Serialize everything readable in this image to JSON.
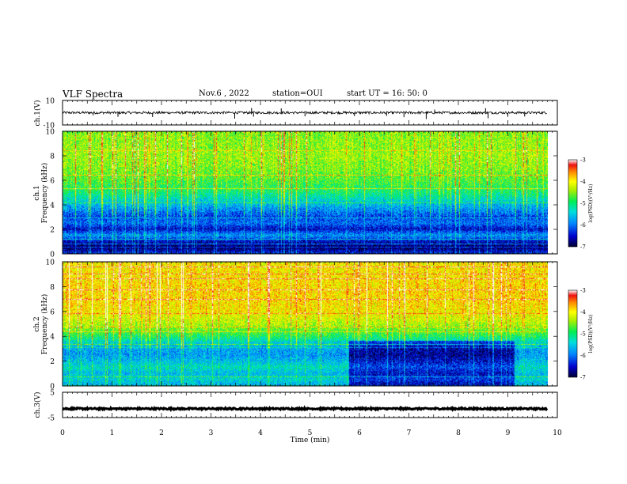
{
  "header": {
    "title": "VLF Spectra",
    "date": "Nov.6 , 2022",
    "station": "station=OUI",
    "start": "start UT = 16: 50: 0"
  },
  "chart_data": [
    {
      "type": "line",
      "panel": "ch1-waveform",
      "ylabel": "ch.1(V)",
      "ylim": [
        -10,
        10
      ],
      "yticks": [
        "10",
        "-10"
      ],
      "xlim": [
        0,
        10
      ],
      "baseline": 0,
      "noise_amplitude": 1.0,
      "spikes": [
        {
          "x": 0.62,
          "y": -2.2
        },
        {
          "x": 1.12,
          "y": -3.4
        },
        {
          "x": 1.82,
          "y": -3.5
        },
        {
          "x": 3.48,
          "y": -4.8
        },
        {
          "x": 3.82,
          "y": 3.8
        },
        {
          "x": 3.86,
          "y": -3.2
        },
        {
          "x": 4.42,
          "y": 3.5
        },
        {
          "x": 4.9,
          "y": -3.0
        },
        {
          "x": 5.9,
          "y": -2.8
        },
        {
          "x": 6.55,
          "y": -2.6
        },
        {
          "x": 6.9,
          "y": -3.6
        },
        {
          "x": 7.35,
          "y": -5.2
        },
        {
          "x": 7.52,
          "y": 2.6
        },
        {
          "x": 8.55,
          "y": 3.6
        },
        {
          "x": 8.6,
          "y": -4.5
        },
        {
          "x": 9.0,
          "y": -3.3
        },
        {
          "x": 9.34,
          "y": -3.1
        }
      ]
    },
    {
      "type": "heatmap",
      "panel": "ch1-spectrogram",
      "ylabel_top": "ch.1",
      "ylabel": "Frequency (kHz)",
      "xlim": [
        0,
        10
      ],
      "xdata_end": 9.8,
      "ylim": [
        0,
        10
      ],
      "yticks": [
        "0",
        "2",
        "4",
        "6",
        "8",
        "10"
      ],
      "colorbar": {
        "label": "log(PSD)(V²/Hz)",
        "range": [
          -7,
          -3
        ],
        "ticks": [
          "-3",
          "-4",
          "-5",
          "-6",
          "-7"
        ]
      },
      "profile": [
        {
          "f": 0,
          "log_psd": -6.3
        },
        {
          "f": 0.5,
          "log_psd": -6.9
        },
        {
          "f": 1.0,
          "log_psd": -6.5
        },
        {
          "f": 1.5,
          "log_psd": -5.8
        },
        {
          "f": 2.0,
          "log_psd": -6.5
        },
        {
          "f": 2.5,
          "log_psd": -6.0
        },
        {
          "f": 3.0,
          "log_psd": -6.2
        },
        {
          "f": 3.5,
          "log_psd": -5.9
        },
        {
          "f": 4.0,
          "log_psd": -5.6
        },
        {
          "f": 5.0,
          "log_psd": -5.0
        },
        {
          "f": 6.0,
          "log_psd": -4.7
        },
        {
          "f": 7.0,
          "log_psd": -4.5
        },
        {
          "f": 8.0,
          "log_psd": -4.4
        },
        {
          "f": 10.0,
          "log_psd": -4.5
        }
      ],
      "late_shift": [
        {
          "from": 9.8,
          "delta": 0
        }
      ]
    },
    {
      "type": "heatmap",
      "panel": "ch2-spectrogram",
      "ylabel_top": "ch.2",
      "ylabel": "Frequency (kHz)",
      "xlim": [
        0,
        10
      ],
      "xdata_end": 9.8,
      "ylim": [
        0,
        10
      ],
      "yticks": [
        "0",
        "2",
        "4",
        "6",
        "8",
        "10"
      ],
      "colorbar": {
        "label": "log(PSD)(V²/Hz)",
        "range": [
          -7,
          -3
        ],
        "ticks": [
          "-3",
          "-4",
          "-5",
          "-6",
          "-7"
        ]
      },
      "profile": [
        {
          "f": 0,
          "log_psd": -5.7
        },
        {
          "f": 0.5,
          "log_psd": -5.4
        },
        {
          "f": 1.0,
          "log_psd": -5.6
        },
        {
          "f": 1.5,
          "log_psd": -5.3
        },
        {
          "f": 2.0,
          "log_psd": -5.6
        },
        {
          "f": 2.5,
          "log_psd": -5.8
        },
        {
          "f": 3.0,
          "log_psd": -5.7
        },
        {
          "f": 3.5,
          "log_psd": -5.4
        },
        {
          "f": 4.0,
          "log_psd": -4.9
        },
        {
          "f": 5.0,
          "log_psd": -4.3
        },
        {
          "f": 6.0,
          "log_psd": -4.0
        },
        {
          "f": 7.0,
          "log_psd": -3.9
        },
        {
          "f": 8.0,
          "log_psd": -3.9
        },
        {
          "f": 10.0,
          "log_psd": -4.0
        }
      ],
      "late_region": {
        "from_min": 5.9,
        "to_min": 9.3,
        "below_khz": 3.6,
        "delta": -0.9
      }
    },
    {
      "type": "line",
      "panel": "ch3-waveform",
      "ylabel": "ch.3(V)",
      "ylim": [
        -5,
        5
      ],
      "yticks": [
        "5",
        "-5"
      ],
      "xlim": [
        0,
        10
      ],
      "value": -1.5,
      "noise_amplitude": 0.3
    }
  ],
  "xaxis": {
    "label": "Time (min)",
    "ticks": [
      "0",
      "1",
      "2",
      "3",
      "4",
      "5",
      "6",
      "7",
      "8",
      "9",
      "10"
    ]
  }
}
